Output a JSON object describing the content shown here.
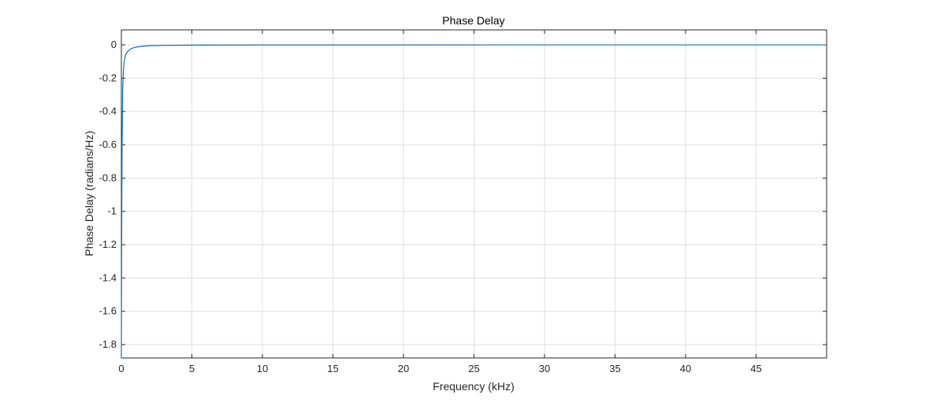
{
  "chart_data": {
    "type": "line",
    "title": "Phase Delay",
    "xlabel": "Frequency (kHz)",
    "ylabel": "Phase Delay (radians/Hz)",
    "xlim": [
      0,
      50
    ],
    "ylim": [
      -1.88,
      0.09
    ],
    "xticks": [
      0,
      5,
      10,
      15,
      20,
      25,
      30,
      35,
      40,
      45
    ],
    "yticks": [
      0,
      -0.2,
      -0.4,
      -0.6,
      -0.8,
      -1,
      -1.2,
      -1.4,
      -1.6,
      -1.8
    ],
    "xtick_labels": [
      "0",
      "5",
      "10",
      "15",
      "20",
      "25",
      "30",
      "35",
      "40",
      "45"
    ],
    "ytick_labels": [
      "0",
      "-0.2",
      "-0.4",
      "-0.6",
      "-0.8",
      "-1",
      "-1.2",
      "-1.4",
      "-1.6",
      "-1.8"
    ],
    "grid": true,
    "series": [
      {
        "color": "#0072bd",
        "x": [
          0.0,
          0.02,
          0.05,
          0.1,
          0.15,
          0.2,
          0.3,
          0.4,
          0.5,
          0.7,
          1.0,
          1.5,
          2.0,
          3.0,
          5.0,
          10.0,
          20.0,
          30.0,
          40.0,
          50.0
        ],
        "y": [
          -1.88,
          -1.2,
          -0.6,
          -0.25,
          -0.15,
          -0.1,
          -0.06,
          -0.045,
          -0.035,
          -0.022,
          -0.014,
          -0.008,
          -0.005,
          -0.003,
          -0.0015,
          -0.0005,
          -0.0002,
          -0.0001,
          0.0,
          0.0
        ]
      }
    ]
  }
}
